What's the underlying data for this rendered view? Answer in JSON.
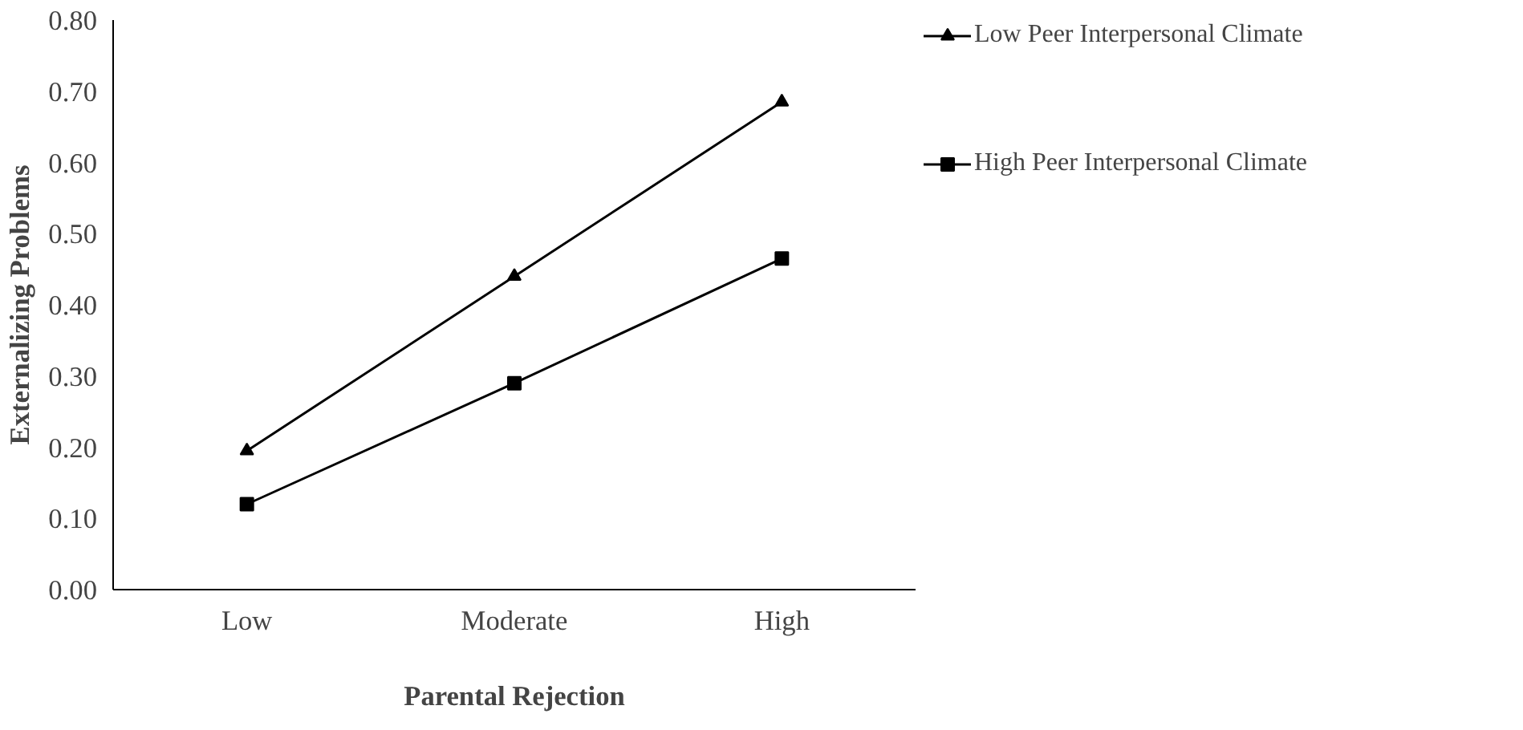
{
  "chart_data": {
    "type": "line",
    "xlabel": "Parental Rejection",
    "ylabel": "Externalizing Problems",
    "categories": [
      "Low",
      "Moderate",
      "High"
    ],
    "series": [
      {
        "name": "Low Peer Interpersonal Climate",
        "color": "#000000",
        "marker": "triangle",
        "values": [
          0.195,
          0.44,
          0.685
        ]
      },
      {
        "name": "High Peer Interpersonal Climate",
        "color": "#000000",
        "marker": "square",
        "values": [
          0.12,
          0.29,
          0.465
        ]
      }
    ],
    "ylim": [
      0,
      0.8
    ],
    "yticks": [
      {
        "value": 0,
        "label": "0.00"
      },
      {
        "value": 0.1,
        "label": "0.10"
      },
      {
        "value": 0.2,
        "label": "0.20"
      },
      {
        "value": 0.3,
        "label": "0.30"
      },
      {
        "value": 0.4,
        "label": "0.40"
      },
      {
        "value": 0.5,
        "label": "0.50"
      },
      {
        "value": 0.6,
        "label": "0.60"
      },
      {
        "value": 0.7,
        "label": "0.70"
      },
      {
        "value": 0.8,
        "label": "0.80"
      }
    ],
    "grid": false,
    "legend": "right",
    "line_style": "solid"
  }
}
